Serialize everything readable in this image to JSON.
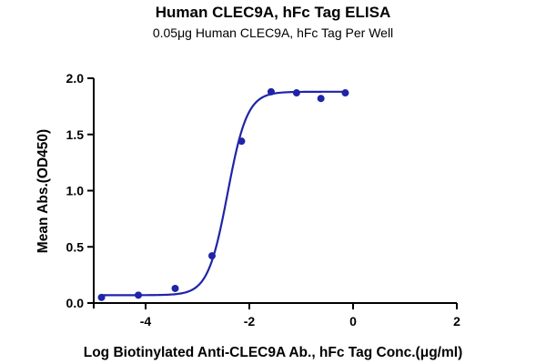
{
  "chart_data": {
    "type": "scatter",
    "title": "Human CLEC9A, hFc Tag ELISA",
    "subtitle": "0.05μg Human CLEC9A, hFc Tag Per Well",
    "xlabel": "Log Biotinylated Anti-CLEC9A Ab., hFc Tag Conc.(μg/ml)",
    "ylabel": "Mean Abs.(OD450)",
    "xlim": [
      -5,
      2
    ],
    "ylim": [
      0,
      2.0
    ],
    "x_ticks": [
      -4,
      -2,
      0,
      2
    ],
    "x_tick_labels": [
      "-4",
      "-2",
      "0",
      "2"
    ],
    "y_ticks": [
      0.0,
      0.5,
      1.0,
      1.5,
      2.0
    ],
    "y_tick_labels": [
      "0.0",
      "0.5",
      "1.0",
      "1.5",
      "2.0"
    ],
    "grid": false,
    "legend": "none",
    "color": "#1f24a8",
    "series": [
      {
        "points": [
          {
            "x": -4.85,
            "y": 0.05
          },
          {
            "x": -4.14,
            "y": 0.07
          },
          {
            "x": -3.43,
            "y": 0.13
          },
          {
            "x": -2.72,
            "y": 0.42
          },
          {
            "x": -2.15,
            "y": 1.44
          },
          {
            "x": -1.58,
            "y": 1.88
          },
          {
            "x": -1.09,
            "y": 1.87
          },
          {
            "x": -0.62,
            "y": 1.82
          },
          {
            "x": -0.15,
            "y": 1.87
          }
        ],
        "fit": {
          "model": "4PL",
          "bottom": 0.07,
          "top": 1.88,
          "logEC50": -2.42,
          "hill": 2.3,
          "x_range": [
            -4.85,
            -0.15
          ]
        }
      }
    ]
  }
}
